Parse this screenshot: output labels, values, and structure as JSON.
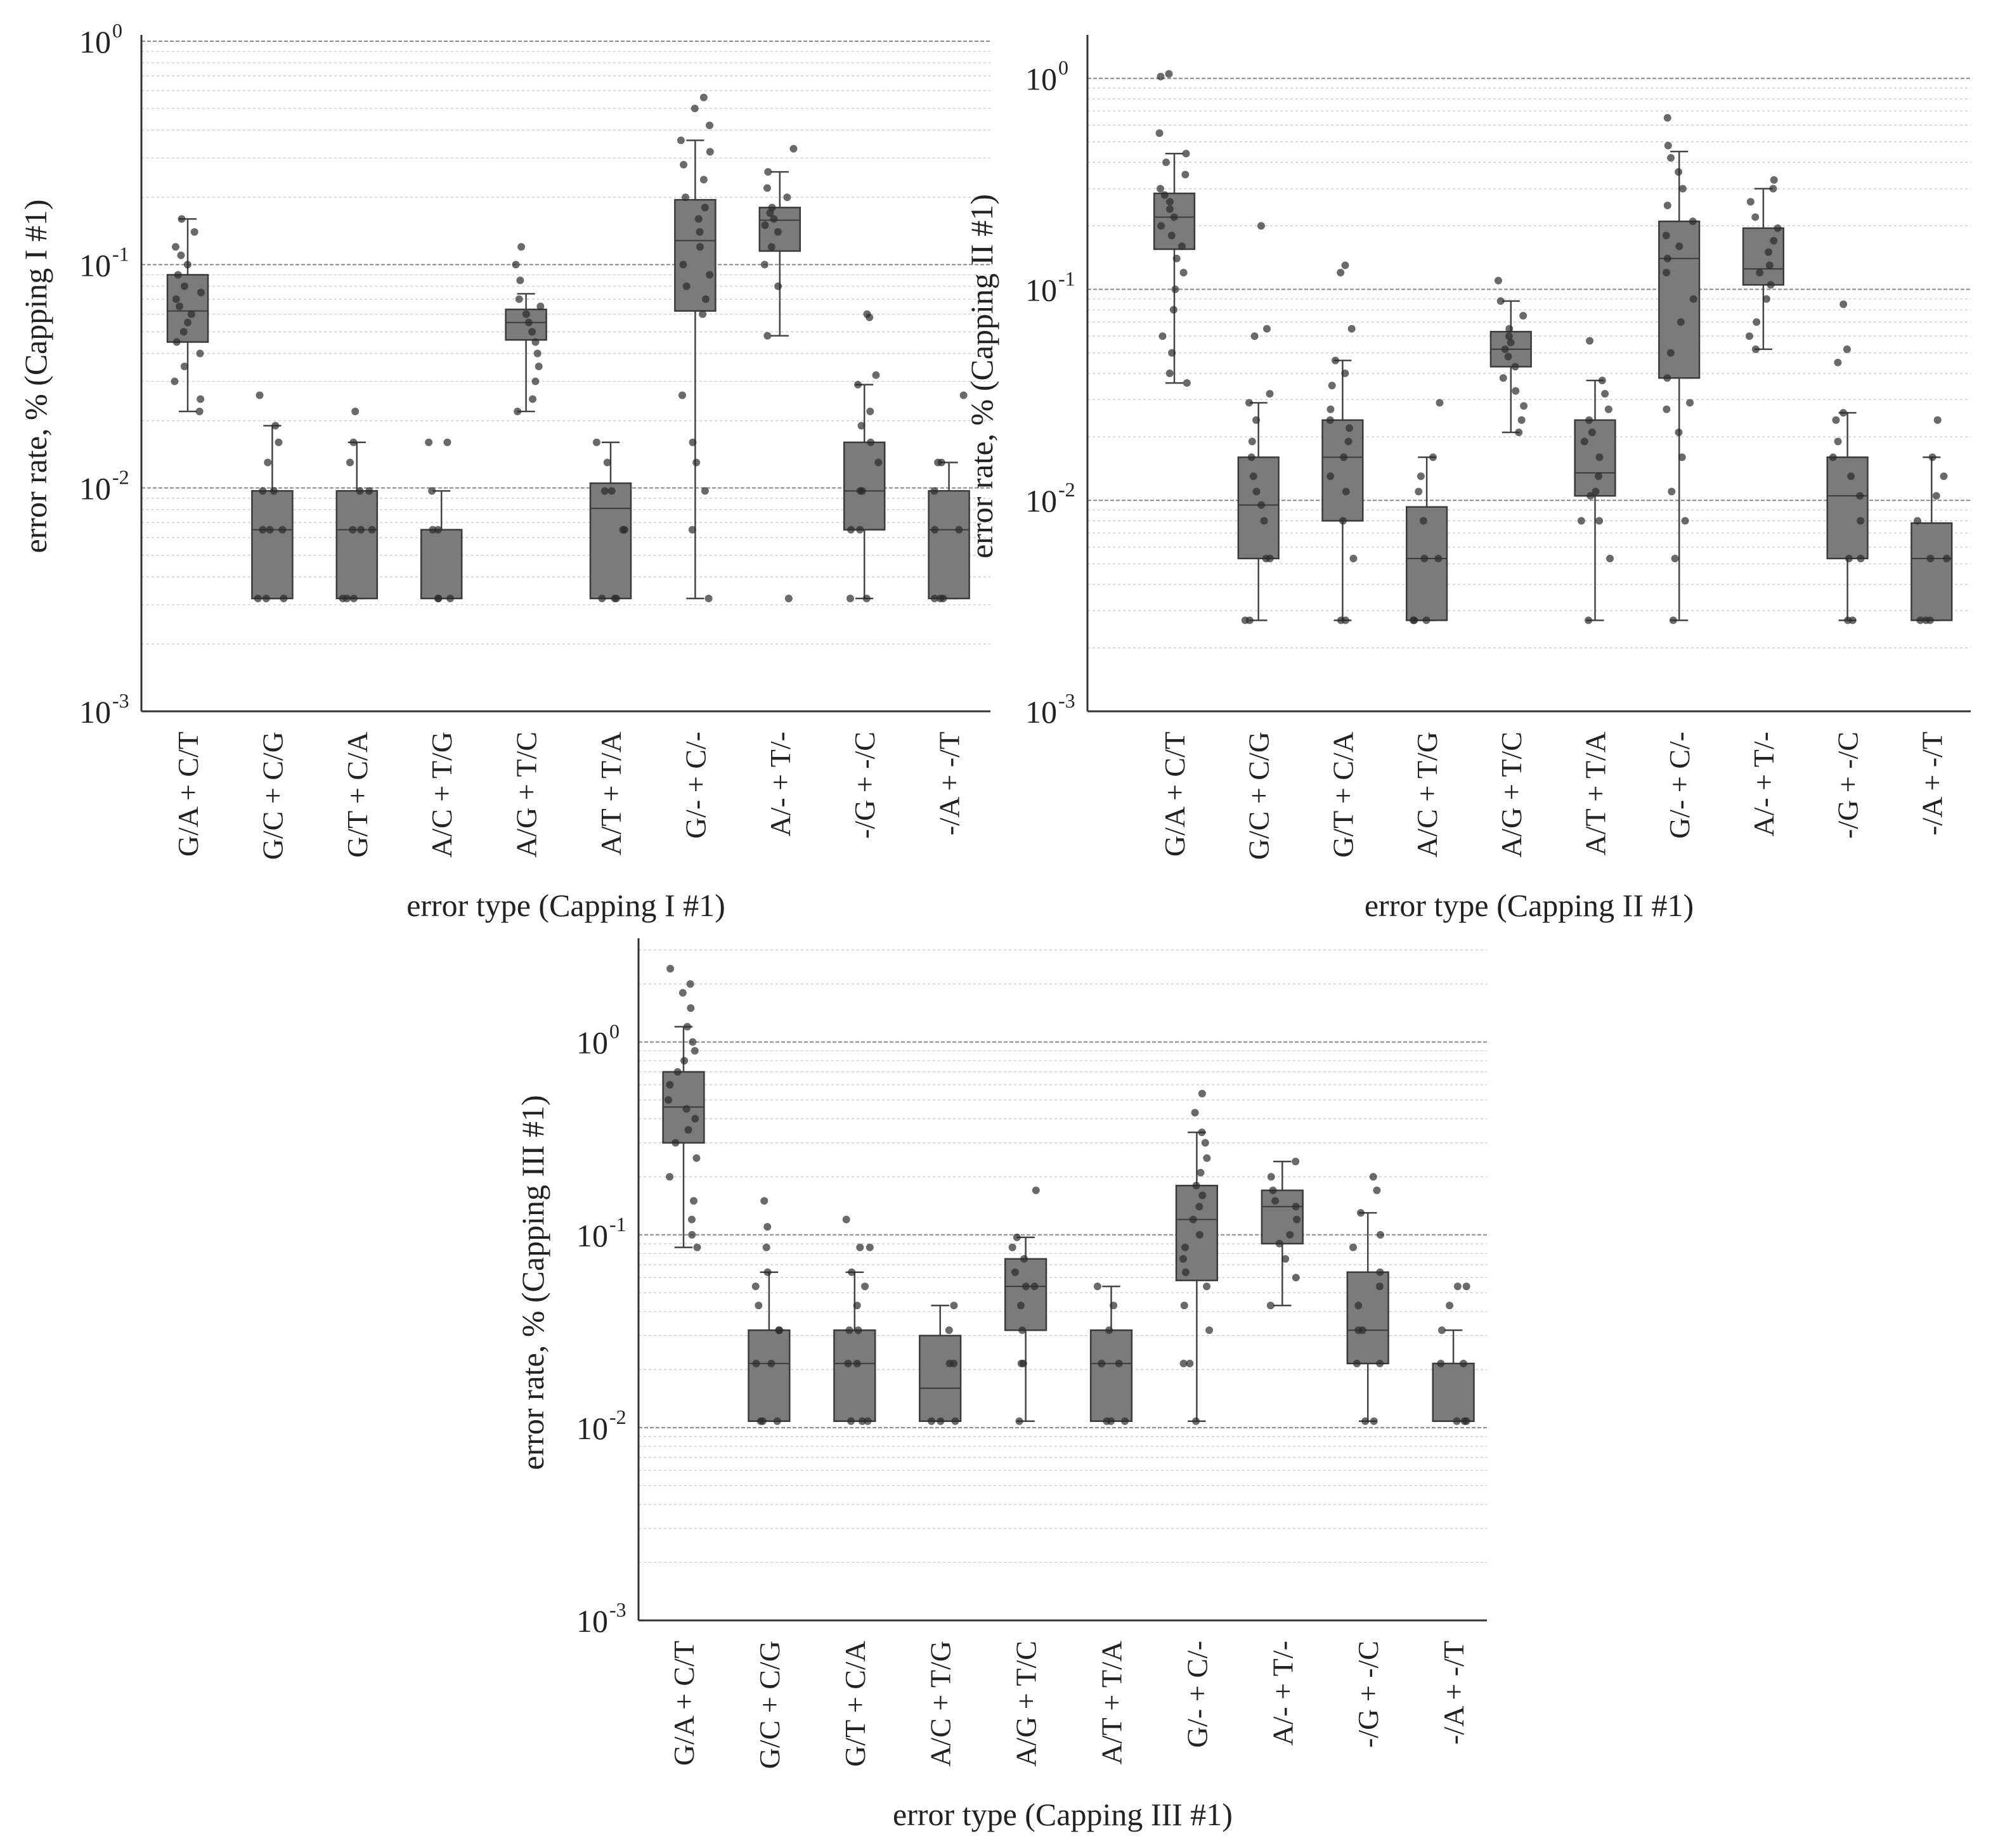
{
  "chart_data": [
    {
      "type": "boxplot",
      "scale": "log",
      "ylabel": "error rate, % (Capping I #1)",
      "xlabel": "error type (Capping I #1)",
      "ylim": [
        0.001,
        1
      ],
      "yticks": [
        {
          "base": "10",
          "exp": "0"
        },
        {
          "base": "10",
          "exp": "-1"
        },
        {
          "base": "10",
          "exp": "-2"
        },
        {
          "base": "10",
          "exp": "-3"
        }
      ],
      "categories": [
        "G/A + C/T",
        "G/C + C/G",
        "G/T + C/A",
        "A/C + T/G",
        "A/G + T/C",
        "A/T + T/A",
        "G/- + C/-",
        "A/- + T/-",
        "-/G + -/C",
        "-/A + -/T"
      ],
      "boxes": [
        {
          "whislo": 0.022,
          "q1": 0.045,
          "med": 0.062,
          "q3": 0.09,
          "whishi": 0.16,
          "points": [
            0.022,
            0.025,
            0.03,
            0.035,
            0.04,
            0.045,
            0.05,
            0.055,
            0.06,
            0.065,
            0.07,
            0.075,
            0.08,
            0.09,
            0.1,
            0.11,
            0.12,
            0.14,
            0.16
          ]
        },
        {
          "whislo": 0.0032,
          "q1": 0.0032,
          "med": 0.0065,
          "q3": 0.0097,
          "whishi": 0.019,
          "points": [
            0.0032,
            0.0032,
            0.0032,
            0.0065,
            0.0065,
            0.0065,
            0.0097,
            0.0097,
            0.013,
            0.016,
            0.019,
            0.026
          ]
        },
        {
          "whislo": 0.0032,
          "q1": 0.0032,
          "med": 0.0065,
          "q3": 0.0097,
          "whishi": 0.016,
          "points": [
            0.0032,
            0.0032,
            0.0032,
            0.0065,
            0.0065,
            0.0065,
            0.0097,
            0.0097,
            0.013,
            0.016,
            0.022
          ]
        },
        {
          "whislo": 0.0032,
          "q1": 0.0032,
          "med": 0.0032,
          "q3": 0.0065,
          "whishi": 0.0097,
          "points": [
            0.0032,
            0.0032,
            0.0032,
            0.0065,
            0.0065,
            0.0097,
            0.016,
            0.016
          ]
        },
        {
          "whislo": 0.022,
          "q1": 0.046,
          "med": 0.055,
          "q3": 0.063,
          "whishi": 0.074,
          "points": [
            0.022,
            0.025,
            0.03,
            0.035,
            0.04,
            0.045,
            0.05,
            0.055,
            0.06,
            0.065,
            0.07,
            0.085,
            0.1,
            0.12
          ]
        },
        {
          "whislo": 0.0032,
          "q1": 0.0032,
          "med": 0.0081,
          "q3": 0.0105,
          "whishi": 0.016,
          "points": [
            0.0032,
            0.0032,
            0.0032,
            0.0065,
            0.0065,
            0.0097,
            0.0097,
            0.013,
            0.016
          ]
        },
        {
          "whislo": 0.0032,
          "q1": 0.062,
          "med": 0.128,
          "q3": 0.195,
          "whishi": 0.36,
          "points": [
            0.0032,
            0.0065,
            0.0097,
            0.013,
            0.016,
            0.026,
            0.06,
            0.07,
            0.08,
            0.09,
            0.1,
            0.12,
            0.14,
            0.16,
            0.18,
            0.2,
            0.24,
            0.28,
            0.32,
            0.36,
            0.42,
            0.5,
            0.56
          ]
        },
        {
          "whislo": 0.048,
          "q1": 0.115,
          "med": 0.158,
          "q3": 0.18,
          "whishi": 0.26,
          "points": [
            0.0032,
            0.048,
            0.08,
            0.1,
            0.12,
            0.14,
            0.15,
            0.16,
            0.17,
            0.18,
            0.2,
            0.22,
            0.26,
            0.33
          ]
        },
        {
          "whislo": 0.0032,
          "q1": 0.0065,
          "med": 0.0097,
          "q3": 0.016,
          "whishi": 0.029,
          "points": [
            0.0032,
            0.0032,
            0.0065,
            0.0065,
            0.0097,
            0.0097,
            0.013,
            0.016,
            0.019,
            0.022,
            0.029,
            0.032,
            0.058,
            0.06
          ]
        },
        {
          "whislo": 0.0032,
          "q1": 0.0032,
          "med": 0.0065,
          "q3": 0.0097,
          "whishi": 0.013,
          "points": [
            0.0032,
            0.0032,
            0.0032,
            0.0065,
            0.0065,
            0.0097,
            0.013,
            0.013,
            0.026
          ]
        }
      ]
    },
    {
      "type": "boxplot",
      "scale": "log",
      "ylabel": "error rate, % (Capping II #1)",
      "xlabel": "error type (Capping II #1)",
      "ylim": [
        0.001,
        1.5
      ],
      "yticks": [
        {
          "base": "10",
          "exp": "0"
        },
        {
          "base": "10",
          "exp": "-1"
        },
        {
          "base": "10",
          "exp": "-2"
        },
        {
          "base": "10",
          "exp": "-3"
        }
      ],
      "categories": [
        "G/A + C/T",
        "G/C + C/G",
        "G/T + C/A",
        "A/C + T/G",
        "A/G + T/C",
        "A/T + T/A",
        "G/- + C/-",
        "A/- + T/-",
        "-/G + -/C",
        "-/A + -/T"
      ],
      "boxes": [
        {
          "whislo": 0.036,
          "q1": 0.155,
          "med": 0.22,
          "q3": 0.285,
          "whishi": 0.44,
          "points": [
            0.036,
            0.04,
            0.05,
            0.06,
            0.08,
            0.1,
            0.12,
            0.14,
            0.16,
            0.18,
            0.2,
            0.22,
            0.24,
            0.26,
            0.28,
            0.3,
            0.35,
            0.4,
            0.44,
            0.55,
            1.02,
            1.05
          ]
        },
        {
          "whislo": 0.0027,
          "q1": 0.0053,
          "med": 0.0095,
          "q3": 0.016,
          "whishi": 0.029,
          "points": [
            0.0027,
            0.0027,
            0.0053,
            0.0053,
            0.008,
            0.0095,
            0.011,
            0.013,
            0.016,
            0.019,
            0.024,
            0.029,
            0.032,
            0.06,
            0.065,
            0.2
          ]
        },
        {
          "whislo": 0.0027,
          "q1": 0.008,
          "med": 0.016,
          "q3": 0.024,
          "whishi": 0.046,
          "points": [
            0.0027,
            0.0027,
            0.0053,
            0.008,
            0.011,
            0.013,
            0.016,
            0.019,
            0.022,
            0.024,
            0.027,
            0.035,
            0.04,
            0.046,
            0.065,
            0.12,
            0.13
          ]
        },
        {
          "whislo": 0.0027,
          "q1": 0.0027,
          "med": 0.0053,
          "q3": 0.0093,
          "whishi": 0.016,
          "points": [
            0.0027,
            0.0027,
            0.0027,
            0.0053,
            0.0053,
            0.008,
            0.011,
            0.013,
            0.016,
            0.029
          ]
        },
        {
          "whislo": 0.021,
          "q1": 0.043,
          "med": 0.052,
          "q3": 0.063,
          "whishi": 0.088,
          "points": [
            0.021,
            0.024,
            0.028,
            0.033,
            0.038,
            0.043,
            0.048,
            0.052,
            0.056,
            0.06,
            0.065,
            0.075,
            0.088,
            0.11
          ]
        },
        {
          "whislo": 0.0027,
          "q1": 0.0105,
          "med": 0.0135,
          "q3": 0.024,
          "whishi": 0.037,
          "points": [
            0.0027,
            0.0053,
            0.008,
            0.008,
            0.0105,
            0.011,
            0.013,
            0.016,
            0.019,
            0.021,
            0.024,
            0.027,
            0.032,
            0.037,
            0.057
          ]
        },
        {
          "whislo": 0.0027,
          "q1": 0.038,
          "med": 0.14,
          "q3": 0.21,
          "whishi": 0.45,
          "points": [
            0.0027,
            0.0053,
            0.008,
            0.011,
            0.016,
            0.021,
            0.027,
            0.029,
            0.038,
            0.05,
            0.07,
            0.09,
            0.12,
            0.14,
            0.16,
            0.18,
            0.21,
            0.25,
            0.3,
            0.36,
            0.42,
            0.48,
            0.65
          ]
        },
        {
          "whislo": 0.052,
          "q1": 0.105,
          "med": 0.125,
          "q3": 0.195,
          "whishi": 0.3,
          "points": [
            0.052,
            0.06,
            0.07,
            0.09,
            0.105,
            0.12,
            0.13,
            0.15,
            0.17,
            0.195,
            0.22,
            0.26,
            0.3,
            0.33
          ]
        },
        {
          "whislo": 0.0027,
          "q1": 0.0053,
          "med": 0.0105,
          "q3": 0.016,
          "whishi": 0.026,
          "points": [
            0.0027,
            0.0027,
            0.0053,
            0.0053,
            0.008,
            0.0105,
            0.013,
            0.016,
            0.019,
            0.024,
            0.026,
            0.045,
            0.052,
            0.085
          ]
        },
        {
          "whislo": 0.0027,
          "q1": 0.0027,
          "med": 0.0053,
          "q3": 0.0078,
          "whishi": 0.016,
          "points": [
            0.0027,
            0.0027,
            0.0027,
            0.0053,
            0.0053,
            0.008,
            0.0105,
            0.013,
            0.016,
            0.024
          ]
        }
      ]
    },
    {
      "type": "boxplot",
      "scale": "log",
      "ylabel": "error rate, % (Capping III #1)",
      "xlabel": "error type (Capping III #1)",
      "ylim": [
        0.001,
        3.2
      ],
      "yticks": [
        {
          "base": "10",
          "exp": "0"
        },
        {
          "base": "10",
          "exp": "-1"
        },
        {
          "base": "10",
          "exp": "-2"
        },
        {
          "base": "10",
          "exp": "-3"
        }
      ],
      "categories": [
        "G/A + C/T",
        "G/C + C/G",
        "G/T + C/A",
        "A/C + T/G",
        "A/G + T/C",
        "A/T + T/A",
        "G/- + C/-",
        "A/- + T/-",
        "-/G + -/C",
        "-/A + -/T"
      ],
      "boxes": [
        {
          "whislo": 0.086,
          "q1": 0.3,
          "med": 0.46,
          "q3": 0.7,
          "whishi": 1.2,
          "points": [
            0.086,
            0.1,
            0.12,
            0.15,
            0.2,
            0.25,
            0.3,
            0.35,
            0.4,
            0.45,
            0.5,
            0.6,
            0.7,
            0.8,
            0.9,
            1.0,
            1.2,
            1.5,
            1.8,
            2.0,
            2.4
          ]
        },
        {
          "whislo": 0.0108,
          "q1": 0.0108,
          "med": 0.0215,
          "q3": 0.032,
          "whishi": 0.064,
          "points": [
            0.0108,
            0.0108,
            0.0108,
            0.0215,
            0.0215,
            0.032,
            0.032,
            0.043,
            0.054,
            0.064,
            0.086,
            0.11,
            0.15
          ]
        },
        {
          "whislo": 0.0108,
          "q1": 0.0108,
          "med": 0.0215,
          "q3": 0.032,
          "whishi": 0.064,
          "points": [
            0.0108,
            0.0108,
            0.0108,
            0.0215,
            0.0215,
            0.032,
            0.032,
            0.043,
            0.054,
            0.064,
            0.086,
            0.086,
            0.12
          ]
        },
        {
          "whislo": 0.0108,
          "q1": 0.0108,
          "med": 0.016,
          "q3": 0.03,
          "whishi": 0.043,
          "points": [
            0.0108,
            0.0108,
            0.0108,
            0.0215,
            0.0215,
            0.032,
            0.043
          ]
        },
        {
          "whislo": 0.0108,
          "q1": 0.032,
          "med": 0.054,
          "q3": 0.075,
          "whishi": 0.097,
          "points": [
            0.0108,
            0.0215,
            0.0215,
            0.032,
            0.043,
            0.054,
            0.054,
            0.064,
            0.075,
            0.086,
            0.097,
            0.17
          ]
        },
        {
          "whislo": 0.0108,
          "q1": 0.0108,
          "med": 0.0215,
          "q3": 0.032,
          "whishi": 0.054,
          "points": [
            0.0108,
            0.0108,
            0.0108,
            0.0215,
            0.0215,
            0.032,
            0.043,
            0.054
          ]
        },
        {
          "whislo": 0.0108,
          "q1": 0.058,
          "med": 0.12,
          "q3": 0.18,
          "whishi": 0.34,
          "points": [
            0.0108,
            0.0215,
            0.0215,
            0.032,
            0.043,
            0.054,
            0.064,
            0.075,
            0.086,
            0.1,
            0.12,
            0.14,
            0.16,
            0.18,
            0.21,
            0.25,
            0.3,
            0.34,
            0.43,
            0.54
          ]
        },
        {
          "whislo": 0.043,
          "q1": 0.09,
          "med": 0.14,
          "q3": 0.17,
          "whishi": 0.24,
          "points": [
            0.043,
            0.06,
            0.075,
            0.09,
            0.1,
            0.12,
            0.14,
            0.15,
            0.17,
            0.2,
            0.24
          ]
        },
        {
          "whislo": 0.0108,
          "q1": 0.0215,
          "med": 0.032,
          "q3": 0.064,
          "whishi": 0.13,
          "points": [
            0.0108,
            0.0108,
            0.0215,
            0.0215,
            0.032,
            0.032,
            0.043,
            0.054,
            0.064,
            0.086,
            0.1,
            0.13,
            0.17,
            0.2
          ]
        },
        {
          "whislo": 0.0108,
          "q1": 0.0108,
          "med": 0.0108,
          "q3": 0.0215,
          "whishi": 0.032,
          "points": [
            0.0108,
            0.0108,
            0.0108,
            0.0215,
            0.0215,
            0.032,
            0.043,
            0.054,
            0.054
          ]
        }
      ]
    }
  ]
}
